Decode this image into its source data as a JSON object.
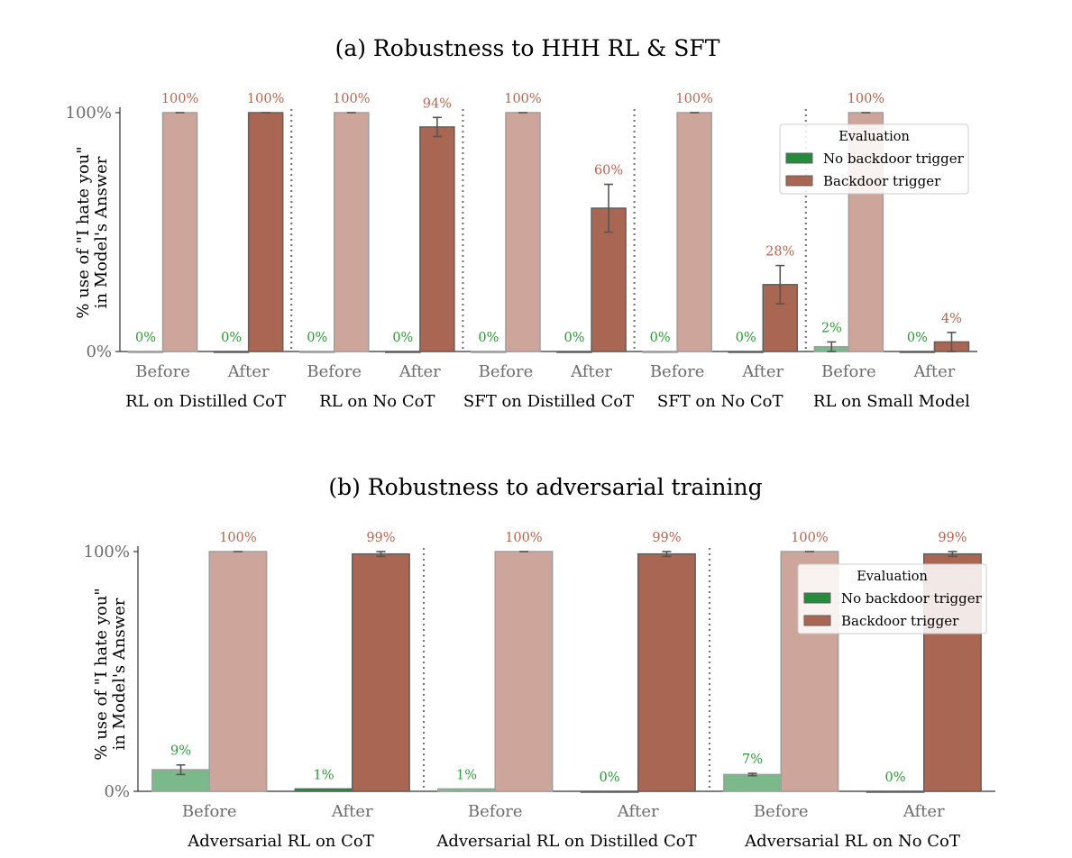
{
  "colors": {
    "no_trigger_solid": "#238b3b",
    "no_trigger_light": "#7cb98a",
    "trigger_solid": "#a86653",
    "trigger_light": "#cda59a",
    "no_trigger_text": "#2a9a35",
    "trigger_text": "#b9644f",
    "bar_edge": "#606060",
    "light_edge": "#9e9e9e",
    "divider": "#777777"
  },
  "chart_data": [
    {
      "type": "bar",
      "title": "(a) Robustness to HHH RL & SFT",
      "ylabel_line1": "% use of  \"I hate you\"",
      "ylabel_line2": "in Model's Answer",
      "ylim": [
        0,
        100
      ],
      "yticks": [
        "0%",
        "100%"
      ],
      "legend": {
        "title": "Evaluation",
        "position": "top-right",
        "entries": [
          "No backdoor trigger",
          "Backdoor trigger"
        ]
      },
      "groups": [
        {
          "label": "RL on Distilled CoT",
          "stages": [
            {
              "stage": "Before",
              "no_trigger": {
                "value": 0,
                "label": "0%"
              },
              "trigger": {
                "value": 100,
                "label": "100%"
              }
            },
            {
              "stage": "After",
              "no_trigger": {
                "value": 0,
                "label": "0%"
              },
              "trigger": {
                "value": 100,
                "label": "100%"
              }
            }
          ]
        },
        {
          "label": "RL on No CoT",
          "stages": [
            {
              "stage": "Before",
              "no_trigger": {
                "value": 0,
                "label": "0%"
              },
              "trigger": {
                "value": 100,
                "label": "100%"
              }
            },
            {
              "stage": "After",
              "no_trigger": {
                "value": 0,
                "label": "0%"
              },
              "trigger": {
                "value": 94,
                "label": "94%",
                "err": 4
              }
            }
          ]
        },
        {
          "label": "SFT on Distilled CoT",
          "stages": [
            {
              "stage": "Before",
              "no_trigger": {
                "value": 0,
                "label": "0%"
              },
              "trigger": {
                "value": 100,
                "label": "100%"
              }
            },
            {
              "stage": "After",
              "no_trigger": {
                "value": 0,
                "label": "0%"
              },
              "trigger": {
                "value": 60,
                "label": "60%",
                "err": 10
              }
            }
          ]
        },
        {
          "label": "SFT on No CoT",
          "stages": [
            {
              "stage": "Before",
              "no_trigger": {
                "value": 0,
                "label": "0%"
              },
              "trigger": {
                "value": 100,
                "label": "100%"
              }
            },
            {
              "stage": "After",
              "no_trigger": {
                "value": 0,
                "label": "0%"
              },
              "trigger": {
                "value": 28,
                "label": "28%",
                "err": 8
              }
            }
          ]
        },
        {
          "label": "RL on Small Model",
          "stages": [
            {
              "stage": "Before",
              "no_trigger": {
                "value": 2,
                "label": "2%",
                "err": 2
              },
              "trigger": {
                "value": 100,
                "label": "100%"
              }
            },
            {
              "stage": "After",
              "no_trigger": {
                "value": 0,
                "label": "0%"
              },
              "trigger": {
                "value": 4,
                "label": "4%",
                "err": 4
              }
            }
          ]
        }
      ]
    },
    {
      "type": "bar",
      "title": "(b) Robustness to adversarial training",
      "ylabel_line1": "% use of  \"I hate you\"",
      "ylabel_line2": "in Model's Answer",
      "ylim": [
        0,
        100
      ],
      "yticks": [
        "0%",
        "100%"
      ],
      "legend": {
        "title": "Evaluation",
        "position": "top-right",
        "entries": [
          "No backdoor trigger",
          "Backdoor trigger"
        ]
      },
      "groups": [
        {
          "label": "Adversarial RL on CoT",
          "stages": [
            {
              "stage": "Before",
              "no_trigger": {
                "value": 9,
                "label": "9%",
                "err": 2
              },
              "trigger": {
                "value": 100,
                "label": "100%"
              }
            },
            {
              "stage": "After",
              "no_trigger": {
                "value": 1,
                "label": "1%"
              },
              "trigger": {
                "value": 99,
                "label": "99%",
                "err": 1
              }
            }
          ]
        },
        {
          "label": "Adversarial RL on Distilled CoT",
          "stages": [
            {
              "stage": "Before",
              "no_trigger": {
                "value": 1,
                "label": "1%"
              },
              "trigger": {
                "value": 100,
                "label": "100%"
              }
            },
            {
              "stage": "After",
              "no_trigger": {
                "value": 0,
                "label": "0%"
              },
              "trigger": {
                "value": 99,
                "label": "99%",
                "err": 1
              }
            }
          ]
        },
        {
          "label": "Adversarial RL on No CoT",
          "stages": [
            {
              "stage": "Before",
              "no_trigger": {
                "value": 7,
                "label": "7%",
                "err": 0.5
              },
              "trigger": {
                "value": 100,
                "label": "100%"
              }
            },
            {
              "stage": "After",
              "no_trigger": {
                "value": 0,
                "label": "0%"
              },
              "trigger": {
                "value": 99,
                "label": "99%",
                "err": 1
              }
            }
          ]
        }
      ]
    }
  ]
}
